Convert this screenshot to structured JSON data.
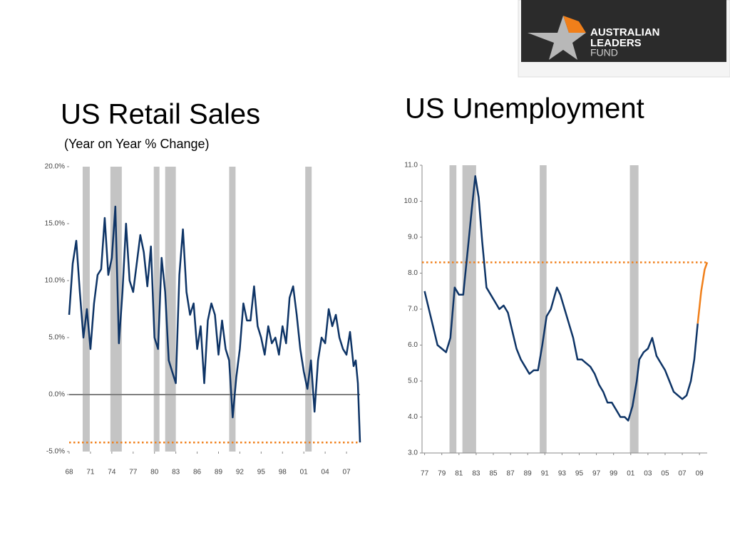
{
  "logo": {
    "lines": [
      "AUSTRALIAN",
      "LEADERS",
      "FUND"
    ]
  },
  "chart_data": [
    {
      "type": "line",
      "title": "US Retail Sales",
      "subtitle": "(Year on Year % Change)",
      "xlim": [
        1968,
        2008.9
      ],
      "xticks": [
        {
          "value": 1968,
          "label": "68"
        },
        {
          "value": 1971,
          "label": "71"
        },
        {
          "value": 1974,
          "label": "74"
        },
        {
          "value": 1977,
          "label": "77"
        },
        {
          "value": 1980,
          "label": "80"
        },
        {
          "value": 1983,
          "label": "83"
        },
        {
          "value": 1986,
          "label": "86"
        },
        {
          "value": 1989,
          "label": "89"
        },
        {
          "value": 1992,
          "label": "92"
        },
        {
          "value": 1995,
          "label": "95"
        },
        {
          "value": 1998,
          "label": "98"
        },
        {
          "value": 2001,
          "label": "01"
        },
        {
          "value": 2004,
          "label": "04"
        },
        {
          "value": 2007,
          "label": "07"
        }
      ],
      "ylim": [
        -5,
        20
      ],
      "yticks": [
        {
          "value": -5,
          "label": "-5.0%"
        },
        {
          "value": 0,
          "label": "0.0%"
        },
        {
          "value": 5,
          "label": "5.0%"
        },
        {
          "value": 10,
          "label": "10.0%"
        },
        {
          "value": 15,
          "label": "15.0%"
        },
        {
          "value": 20,
          "label": "20.0%"
        }
      ],
      "axis_lines": false,
      "shade_color": "#c4c4c4",
      "shaded_ranges": [
        [
          1969.9,
          1970.9
        ],
        [
          1973.8,
          1975.4
        ],
        [
          1979.9,
          1980.7
        ],
        [
          1981.5,
          1983.0
        ],
        [
          1990.5,
          1991.4
        ],
        [
          2001.2,
          2002.1
        ]
      ],
      "hlines": [
        {
          "value": 0,
          "color": "#808080",
          "style": "solid"
        },
        {
          "value": -4.2,
          "color": "#f07f1a",
          "style": "dotted"
        }
      ],
      "x": [
        1968.0,
        1968.5,
        1969.0,
        1969.5,
        1970.0,
        1970.5,
        1971.0,
        1971.5,
        1972.0,
        1972.5,
        1973.0,
        1973.5,
        1974.0,
        1974.5,
        1975.0,
        1975.5,
        1976.0,
        1976.5,
        1977.0,
        1977.5,
        1978.0,
        1978.5,
        1979.0,
        1979.5,
        1980.0,
        1980.5,
        1981.0,
        1981.5,
        1982.0,
        1982.5,
        1983.0,
        1983.5,
        1984.0,
        1984.5,
        1985.0,
        1985.5,
        1986.0,
        1986.5,
        1987.0,
        1987.5,
        1988.0,
        1988.5,
        1989.0,
        1989.5,
        1990.0,
        1990.5,
        1991.0,
        1991.5,
        1992.0,
        1992.5,
        1993.0,
        1993.5,
        1994.0,
        1994.5,
        1995.0,
        1995.5,
        1996.0,
        1996.5,
        1997.0,
        1997.5,
        1998.0,
        1998.5,
        1999.0,
        1999.5,
        2000.0,
        2000.5,
        2001.0,
        2001.5,
        2002.0,
        2002.5,
        2003.0,
        2003.5,
        2004.0,
        2004.5,
        2005.0,
        2005.5,
        2006.0,
        2006.5,
        2007.0,
        2007.5,
        2008.0,
        2008.3,
        2008.6,
        2008.9
      ],
      "series": [
        {
          "color": "#0e3466",
          "values": [
            7.0,
            11.5,
            13.5,
            9.0,
            5.0,
            7.5,
            4.0,
            8.0,
            10.5,
            11.0,
            15.5,
            10.5,
            12.0,
            16.5,
            4.5,
            9.0,
            15.0,
            10.0,
            9.0,
            11.5,
            14.0,
            12.5,
            9.5,
            13.0,
            5.0,
            4.0,
            12.0,
            9.0,
            3.0,
            2.0,
            1.0,
            10.5,
            14.5,
            9.0,
            7.0,
            8.0,
            4.0,
            6.0,
            1.0,
            6.5,
            8.0,
            7.0,
            3.5,
            6.5,
            4.0,
            3.0,
            -2.0,
            1.5,
            4.0,
            8.0,
            6.5,
            6.5,
            9.5,
            6.0,
            5.0,
            3.5,
            6.0,
            4.5,
            5.0,
            3.5,
            6.0,
            4.5,
            8.5,
            9.5,
            7.0,
            4.0,
            2.0,
            0.5,
            3.0,
            -1.5,
            3.0,
            5.0,
            4.5,
            7.5,
            6.0,
            7.0,
            5.0,
            4.0,
            3.5,
            5.5,
            2.5,
            3.0,
            1.0,
            -4.2
          ]
        }
      ]
    },
    {
      "type": "line",
      "title": "US Unemployment",
      "xlim": [
        1976.7,
        2009.9
      ],
      "xticks": [
        {
          "value": 1977,
          "label": "77"
        },
        {
          "value": 1979,
          "label": "79"
        },
        {
          "value": 1981,
          "label": "81"
        },
        {
          "value": 1983,
          "label": "83"
        },
        {
          "value": 1985,
          "label": "85"
        },
        {
          "value": 1987,
          "label": "87"
        },
        {
          "value": 1989,
          "label": "89"
        },
        {
          "value": 1991,
          "label": "91"
        },
        {
          "value": 1993,
          "label": "93"
        },
        {
          "value": 1995,
          "label": "95"
        },
        {
          "value": 1997,
          "label": "97"
        },
        {
          "value": 1999,
          "label": "99"
        },
        {
          "value": 2001,
          "label": "01"
        },
        {
          "value": 2003,
          "label": "03"
        },
        {
          "value": 2005,
          "label": "05"
        },
        {
          "value": 2007,
          "label": "07"
        },
        {
          "value": 2009,
          "label": "09"
        }
      ],
      "ylim": [
        3,
        11
      ],
      "yticks": [
        {
          "value": 3,
          "label": "3.0"
        },
        {
          "value": 4,
          "label": "4.0"
        },
        {
          "value": 5,
          "label": "5.0"
        },
        {
          "value": 6,
          "label": "6.0"
        },
        {
          "value": 7,
          "label": "7.0"
        },
        {
          "value": 8,
          "label": "8.0"
        },
        {
          "value": 9,
          "label": "9.0"
        },
        {
          "value": 10,
          "label": "10.0"
        },
        {
          "value": 11,
          "label": "11.0"
        }
      ],
      "axis_lines": true,
      "shade_color": "#c4c4c4",
      "shaded_ranges": [
        [
          1979.9,
          1980.7
        ],
        [
          1981.4,
          1983.0
        ],
        [
          1990.4,
          1991.2
        ],
        [
          2000.9,
          2001.9
        ]
      ],
      "hlines": [
        {
          "value": 8.3,
          "color": "#f07f1a",
          "style": "dotted"
        }
      ],
      "x": [
        1977.0,
        1977.5,
        1978.0,
        1978.5,
        1979.0,
        1979.5,
        1980.0,
        1980.5,
        1981.0,
        1981.5,
        1982.0,
        1982.5,
        1982.9,
        1983.3,
        1983.7,
        1984.2,
        1984.7,
        1985.2,
        1985.7,
        1986.2,
        1986.7,
        1987.2,
        1987.7,
        1988.2,
        1988.7,
        1989.2,
        1989.7,
        1990.2,
        1990.7,
        1991.2,
        1991.7,
        1992.4,
        1992.8,
        1993.3,
        1993.8,
        1994.3,
        1994.8,
        1995.3,
        1995.8,
        1996.3,
        1996.8,
        1997.3,
        1997.8,
        1998.3,
        1998.8,
        1999.3,
        1999.8,
        2000.3,
        2000.7,
        2001.2,
        2001.7,
        2002.0,
        2002.5,
        2003.0,
        2003.5,
        2004.0,
        2004.5,
        2005.0,
        2005.5,
        2006.0,
        2006.5,
        2007.0,
        2007.5,
        2008.0,
        2008.4,
        2008.8,
        2009.2,
        2009.6,
        2009.9
      ],
      "series": [
        {
          "color": "#0e3466",
          "values": [
            7.5,
            7.0,
            6.5,
            6.0,
            5.9,
            5.8,
            6.2,
            7.6,
            7.4,
            7.4,
            8.6,
            9.8,
            10.7,
            10.1,
            8.9,
            7.6,
            7.4,
            7.2,
            7.0,
            7.1,
            6.9,
            6.4,
            5.9,
            5.6,
            5.4,
            5.2,
            5.3,
            5.3,
            6.0,
            6.8,
            7.0,
            7.6,
            7.4,
            7.0,
            6.6,
            6.2,
            5.6,
            5.6,
            5.5,
            5.4,
            5.2,
            4.9,
            4.7,
            4.4,
            4.4,
            4.2,
            4.0,
            4.0,
            3.9,
            4.3,
            5.0,
            5.6,
            5.8,
            5.9,
            6.2,
            5.7,
            5.5,
            5.3,
            5.0,
            4.7,
            4.6,
            4.5,
            4.6,
            5.0,
            5.6,
            6.6,
            null,
            null,
            null
          ]
        },
        {
          "color": "#f07f1a",
          "values": [
            null,
            null,
            null,
            null,
            null,
            null,
            null,
            null,
            null,
            null,
            null,
            null,
            null,
            null,
            null,
            null,
            null,
            null,
            null,
            null,
            null,
            null,
            null,
            null,
            null,
            null,
            null,
            null,
            null,
            null,
            null,
            null,
            null,
            null,
            null,
            null,
            null,
            null,
            null,
            null,
            null,
            null,
            null,
            null,
            null,
            null,
            null,
            null,
            null,
            null,
            null,
            null,
            null,
            null,
            null,
            null,
            null,
            null,
            null,
            null,
            null,
            null,
            null,
            null,
            null,
            6.6,
            7.5,
            8.1,
            8.3
          ]
        }
      ]
    }
  ]
}
